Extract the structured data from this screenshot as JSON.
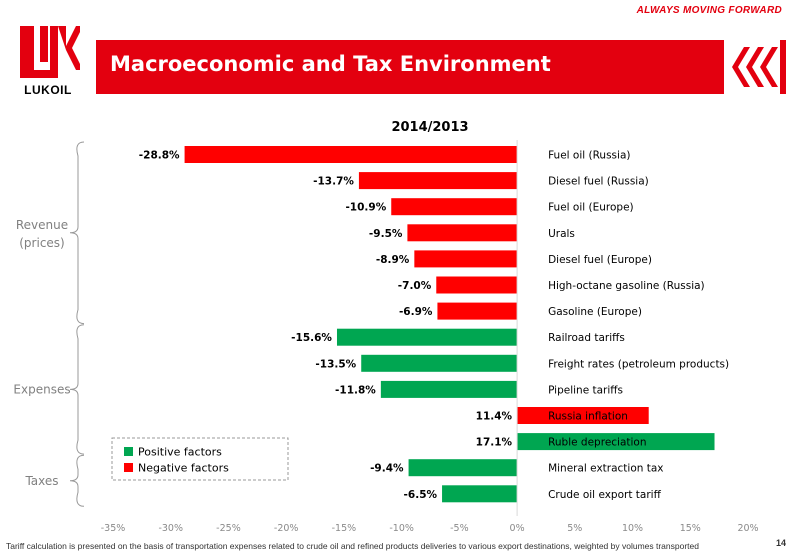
{
  "header": {
    "slogan": "ALWAYS MOVING FORWARD",
    "company": "LUKOIL",
    "title": "Macroeconomic and Tax Environment",
    "accent_color": "#e3000f"
  },
  "chart_data": {
    "type": "bar",
    "orientation": "horizontal",
    "title": "2014/2013",
    "xlim": [
      -35,
      20
    ],
    "x_ticks": [
      -35,
      -30,
      -25,
      -20,
      -15,
      -10,
      -5,
      0,
      5,
      10,
      15,
      20
    ],
    "x_tick_labels": [
      "-35%",
      "-30%",
      "-25%",
      "-20%",
      "-15%",
      "-10%",
      "-5%",
      "0%",
      "5%",
      "10%",
      "15%",
      "20%"
    ],
    "grid": false,
    "legend_position": "bottom-left",
    "legend": [
      {
        "name": "Positive factors",
        "color": "#00a651"
      },
      {
        "name": "Negative factors",
        "color": "#ff0000"
      }
    ],
    "groups": [
      {
        "name": "Revenue",
        "name2": "(prices)"
      },
      {
        "name": "Expenses",
        "name2": ""
      },
      {
        "name": "Taxes",
        "name2": ""
      }
    ],
    "bars": [
      {
        "category": "Fuel oil (Russia)",
        "value": -28.8,
        "label": "-28.8%",
        "factor": "negative",
        "group": 0
      },
      {
        "category": "Diesel fuel (Russia)",
        "value": -13.7,
        "label": "-13.7%",
        "factor": "negative",
        "group": 0
      },
      {
        "category": "Fuel oil (Europe)",
        "value": -10.9,
        "label": "-10.9%",
        "factor": "negative",
        "group": 0
      },
      {
        "category": "Urals",
        "value": -9.5,
        "label": "-9.5%",
        "factor": "negative",
        "group": 0
      },
      {
        "category": "Diesel fuel (Europe)",
        "value": -8.9,
        "label": "-8.9%",
        "factor": "negative",
        "group": 0
      },
      {
        "category": "High-octane gasoline (Russia)",
        "value": -7.0,
        "label": "-7.0%",
        "factor": "negative",
        "group": 0
      },
      {
        "category": "Gasoline (Europe)",
        "value": -6.9,
        "label": "-6.9%",
        "factor": "negative",
        "group": 0
      },
      {
        "category": "Railroad tariffs",
        "value": -15.6,
        "label": "-15.6%",
        "factor": "positive",
        "group": 1
      },
      {
        "category": "Freight rates (petroleum products)",
        "value": -13.5,
        "label": "-13.5%",
        "factor": "positive",
        "group": 1
      },
      {
        "category": "Pipeline tariffs",
        "value": -11.8,
        "label": "-11.8%",
        "factor": "positive",
        "group": 1
      },
      {
        "category": "Russia inflation",
        "value": 11.4,
        "label": "11.4%",
        "factor": "negative",
        "group": 1
      },
      {
        "category": "Ruble depreciation",
        "value": 17.1,
        "label": "17.1%",
        "factor": "positive",
        "group": 1
      },
      {
        "category": "Mineral extraction tax",
        "value": -9.4,
        "label": "-9.4%",
        "factor": "positive",
        "group": 2
      },
      {
        "category": "Crude oil export tariff",
        "value": -6.5,
        "label": "-6.5%",
        "factor": "positive",
        "group": 2
      }
    ]
  },
  "footer": {
    "note": "Tariff calculation is presented on the basis of transportation expenses related to crude oil and refined products deliveries to various export destinations, weighted by volumes transported",
    "page_number": "14"
  }
}
